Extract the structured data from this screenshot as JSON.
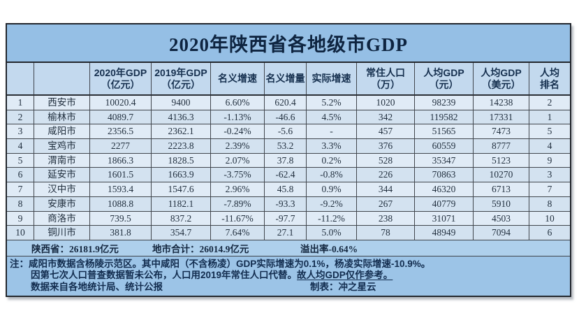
{
  "chart_data": {
    "type": "table",
    "title": "2020年陕西省各地级市GDP",
    "headers": [
      {
        "l1": "",
        "l2": ""
      },
      {
        "l1": "",
        "l2": ""
      },
      {
        "l1": "2020年GDP",
        "l2": "（亿元）"
      },
      {
        "l1": "2019年GDP",
        "l2": "（亿元）"
      },
      {
        "l1": "名义增速",
        "l2": ""
      },
      {
        "l1": "名义增量",
        "l2": ""
      },
      {
        "l1": "实际增速",
        "l2": ""
      },
      {
        "l1": "常住人口",
        "l2": "（万）"
      },
      {
        "l1": "人均GDP",
        "l2": "（元）"
      },
      {
        "l1": "人均GDP",
        "l2": "（美元）"
      },
      {
        "l1": "人均",
        "l2": "排名"
      }
    ],
    "rows": [
      [
        "1",
        "西安市",
        "10020.4",
        "9400",
        "6.60%",
        "620.4",
        "5.2%",
        "1020",
        "98239",
        "14238",
        "2"
      ],
      [
        "2",
        "榆林市",
        "4089.7",
        "4136.3",
        "-1.13%",
        "-46.6",
        "4.5%",
        "342",
        "119582",
        "17331",
        "1"
      ],
      [
        "3",
        "咸阳市",
        "2356.5",
        "2362.1",
        "-0.24%",
        "-5.6",
        "-",
        "457",
        "51565",
        "7473",
        "5"
      ],
      [
        "4",
        "宝鸡市",
        "2277",
        "2223.8",
        "2.39%",
        "53.2",
        "3.3%",
        "376",
        "60559",
        "8777",
        "4"
      ],
      [
        "5",
        "渭南市",
        "1866.3",
        "1828.5",
        "2.07%",
        "37.8",
        "0.2%",
        "528",
        "35347",
        "5123",
        "9"
      ],
      [
        "6",
        "延安市",
        "1601.5",
        "1663.9",
        "-3.75%",
        "-62.4",
        "-0.8%",
        "226",
        "70863",
        "10270",
        "3"
      ],
      [
        "7",
        "汉中市",
        "1593.4",
        "1547.6",
        "2.96%",
        "45.8",
        "0.9%",
        "344",
        "46320",
        "6713",
        "7"
      ],
      [
        "8",
        "安康市",
        "1088.8",
        "1182.1",
        "-7.89%",
        "-93.3",
        "-9.2%",
        "267",
        "40779",
        "5910",
        "8"
      ],
      [
        "9",
        "商洛市",
        "739.5",
        "837.2",
        "-11.67%",
        "-97.7",
        "-11.2%",
        "238",
        "31071",
        "4503",
        "10"
      ],
      [
        "10",
        "铜川市",
        "381.8",
        "354.7",
        "7.64%",
        "27.1",
        "5.0%",
        "78",
        "48949",
        "7094",
        "6"
      ]
    ],
    "summary": {
      "province_total": "陕西省：26181.9亿元",
      "cities_total": "地市合计：26014.9亿元",
      "spillover_rate": "溢出率-0.64%"
    },
    "notes": {
      "label": "注：",
      "line1": "咸阳市数据含杨陵示范区。其中咸阳（不含杨凌）GDP实际增速为0.1%，杨凌实际增速-10.9%。",
      "line2": "因第七次人口普查数据暂未公布，人口用2019年常住人口代替。",
      "line2_underlined": "故人均GDP仅作参考。",
      "line3_left": "数据来自各地统计局、统计公报",
      "line3_right": "制表：冲之星云"
    },
    "layout": {
      "grid": true,
      "column_count": 11,
      "row_count": 10
    }
  },
  "colors": {
    "page_bg": "#ffffff",
    "title_bar_bg": "#95bfe5",
    "header_row_bg": "#c3d9ee",
    "row_odd_bg": "#e0ebf6",
    "row_even_bg": "#d3e2f0",
    "summary_row_bg": "#aed0ec",
    "notes_bg": "#9cc4e7",
    "border_color": "#41464d",
    "text_color": "#22303f",
    "title_text_color": "#0e2440"
  }
}
